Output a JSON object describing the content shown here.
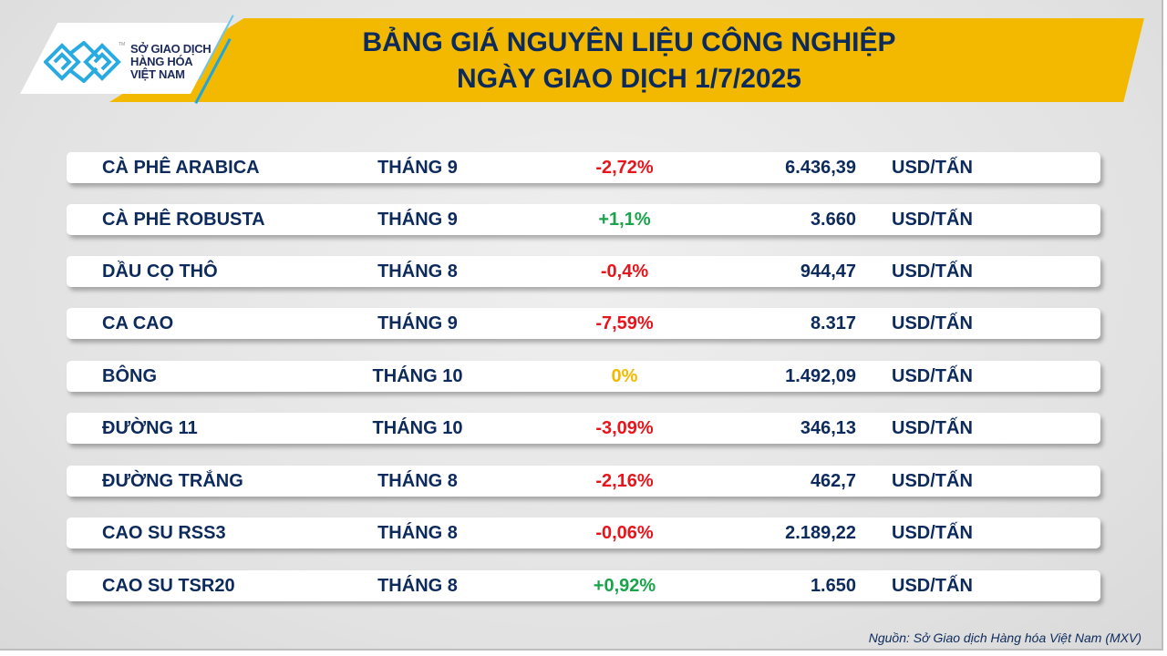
{
  "header": {
    "title_line1": "BẢNG GIÁ NGUYÊN LIỆU CÔNG NGHIỆP",
    "title_line2": "NGÀY GIAO DỊCH 1/7/2025",
    "logo": {
      "line1": "SỞ GIAO DỊCH",
      "line2": "HÀNG HÓA",
      "line3": "VIỆT NAM",
      "tm": "TM"
    }
  },
  "colors": {
    "navy": "#0d2a5c",
    "banner": "#f2b900",
    "down": "#e8141b",
    "up": "#1aa34a",
    "flat": "#f2b900",
    "logo": "#29abe2"
  },
  "rows": [
    {
      "name": "CÀ PHÊ ARABICA",
      "month": "THÁNG 9",
      "change": "-2,72%",
      "trend": "down",
      "price": "6.436,39",
      "unit": "USD/TẤN"
    },
    {
      "name": "CÀ PHÊ ROBUSTA",
      "month": "THÁNG 9",
      "change": "+1,1%",
      "trend": "up",
      "price": "3.660",
      "unit": "USD/TẤN"
    },
    {
      "name": "DẦU CỌ THÔ",
      "month": "THÁNG 8",
      "change": "-0,4%",
      "trend": "down",
      "price": "944,47",
      "unit": "USD/TẤN"
    },
    {
      "name": "CA CAO",
      "month": "THÁNG 9",
      "change": "-7,59%",
      "trend": "down",
      "price": "8.317",
      "unit": "USD/TẤN"
    },
    {
      "name": "BÔNG",
      "month": "THÁNG 10",
      "change": "0%",
      "trend": "flat",
      "price": "1.492,09",
      "unit": "USD/TẤN"
    },
    {
      "name": "ĐƯỜNG 11",
      "month": "THÁNG 10",
      "change": "-3,09%",
      "trend": "down",
      "price": "346,13",
      "unit": "USD/TẤN"
    },
    {
      "name": "ĐƯỜNG TRẮNG",
      "month": "THÁNG 8",
      "change": "-2,16%",
      "trend": "down",
      "price": "462,7",
      "unit": "USD/TẤN"
    },
    {
      "name": "CAO SU RSS3",
      "month": "THÁNG 8",
      "change": "-0,06%",
      "trend": "down",
      "price": "2.189,22",
      "unit": "USD/TẤN"
    },
    {
      "name": "CAO SU TSR20",
      "month": "THÁNG 8",
      "change": "+0,92%",
      "trend": "up",
      "price": "1.650",
      "unit": "USD/TẤN"
    }
  ],
  "footer": {
    "source": "Nguồn: Sở Giao dịch Hàng hóa Việt Nam (MXV)"
  }
}
